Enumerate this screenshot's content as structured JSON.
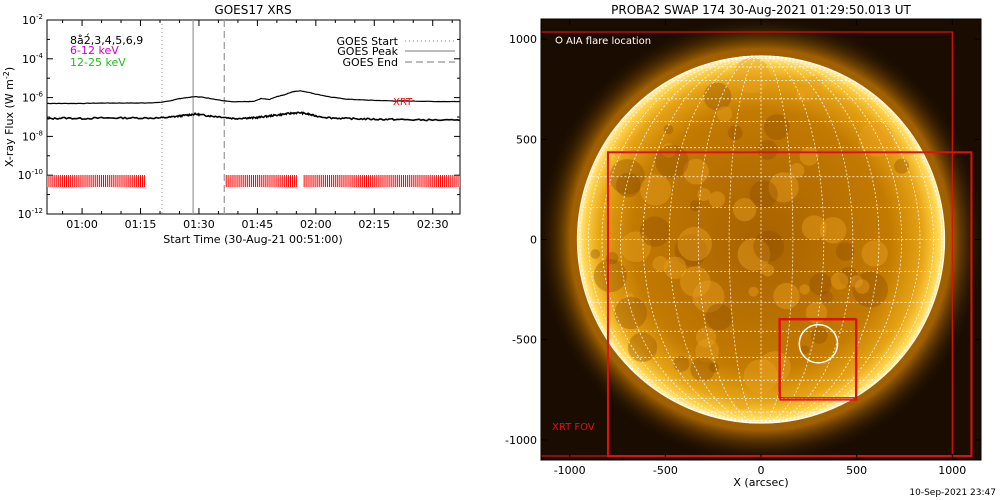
{
  "colors": {
    "goes_line": "#000000",
    "xrt_bars": "#ff0000",
    "legend_6_12": "#cc00cc",
    "legend_12_25": "#22bb22",
    "sun_core": "#b87000",
    "sun_limb": "#ffd24a",
    "grid": "#ffffff",
    "box_red": "#e01010"
  },
  "chart_data": [
    {
      "type": "line",
      "title": "GOES17 XRS",
      "xlabel": "Start Time (30-Aug-21 00:51:00)",
      "ylabel_prefix": "X-ray Flux (W m",
      "ylabel_sup": "-2",
      "ylabel_suffix": ")",
      "xlim_min": [
        51,
        157
      ],
      "ylim_log10": [
        -12,
        -2
      ],
      "log_scale_y": true,
      "x_ticks": [
        "01:00",
        "01:15",
        "01:30",
        "01:45",
        "02:00",
        "02:15",
        "02:30"
      ],
      "x_tick_minutes": [
        60,
        75,
        90,
        105,
        120,
        135,
        150
      ],
      "y_ticks_log10": [
        -2,
        -4,
        -6,
        -8,
        -10,
        -12
      ],
      "y_tick_base": "10",
      "legend_left": [
        "8å2́,3,4,5,6,9",
        "6-12 keV",
        "12-25 keV"
      ],
      "legend_right": [
        {
          "label": "GOES Start",
          "style": "dotted"
        },
        {
          "label": "GOES Peak",
          "style": "solid"
        },
        {
          "label": "GOES End",
          "style": "dashed"
        }
      ],
      "markers_minutes": {
        "start": 80.5,
        "peak": 88.5,
        "end": 96.5
      },
      "xrt_label": "XRT",
      "xrt_bar_level_log10": -10.3,
      "xrt_segments_minutes": [
        [
          51,
          76
        ],
        [
          97,
          115
        ],
        [
          117,
          157
        ]
      ],
      "series": [
        {
          "x": [
            51,
            55,
            60,
            65,
            70,
            75,
            80,
            83,
            85,
            87,
            89,
            91,
            93,
            96,
            99,
            102,
            104,
            106,
            108,
            110,
            112,
            114,
            116,
            118,
            120,
            124,
            128,
            132,
            136,
            140,
            145,
            150,
            157
          ],
          "y_log10": [
            -6.3,
            -6.3,
            -6.3,
            -6.28,
            -6.28,
            -6.28,
            -6.25,
            -6.15,
            -6.05,
            -6.0,
            -5.95,
            -5.98,
            -6.05,
            -6.15,
            -6.22,
            -6.2,
            -6.2,
            -6.05,
            -6.1,
            -5.95,
            -5.85,
            -5.7,
            -5.65,
            -5.72,
            -5.82,
            -5.98,
            -6.08,
            -6.12,
            -6.15,
            -6.17,
            -6.18,
            -6.2,
            -6.2
          ]
        },
        {
          "x": [
            51,
            55,
            60,
            65,
            70,
            75,
            80,
            83,
            85,
            87,
            89,
            91,
            93,
            96,
            99,
            102,
            104,
            106,
            108,
            110,
            112,
            114,
            116,
            118,
            120,
            124,
            128,
            132,
            136,
            140,
            145,
            150,
            157
          ],
          "y_log10": [
            -7.1,
            -7.05,
            -7.08,
            -7.05,
            -7.05,
            -7.05,
            -7.05,
            -7.0,
            -6.95,
            -6.9,
            -6.85,
            -6.9,
            -6.95,
            -7.0,
            -7.08,
            -7.05,
            -7.05,
            -7.0,
            -6.95,
            -6.9,
            -6.85,
            -6.8,
            -6.78,
            -6.85,
            -6.95,
            -7.05,
            -7.08,
            -7.1,
            -7.12,
            -7.12,
            -7.15,
            -7.15,
            -7.18
          ]
        }
      ]
    },
    {
      "type": "scatter",
      "title": "PROBA2 SWAP 174 30-Aug-2021 01:29:50.013 UT",
      "xlabel": "X (arcsec)",
      "ylabel": "",
      "xlim": [
        -1150,
        1150
      ],
      "ylim": [
        -1100,
        1100
      ],
      "x_ticks": [
        -1000,
        -500,
        0,
        500,
        1000
      ],
      "y_ticks": [
        1000,
        500,
        0,
        -500,
        -1000
      ],
      "solar_radius": 960,
      "legend_label": "AIA flare location",
      "flare_location": {
        "x": 300,
        "y": -520,
        "radius": 100
      },
      "xrt_fov_label": "XRT FOV",
      "xrt_fov_box": {
        "x1": -800,
        "y1": -1080,
        "x2": 1100,
        "y2": 435
      },
      "outer_box": {
        "x1": -1150,
        "y1": -1080,
        "x2": 1000,
        "y2": 1035
      },
      "flare_boxes": [
        {
          "x1": 100,
          "y1": -800,
          "x2": 500,
          "y2": -400
        },
        {
          "x1": 95,
          "y1": -790,
          "x2": 495,
          "y2": -395
        }
      ]
    }
  ],
  "footer_timestamp": "10-Sep-2021 23:47"
}
